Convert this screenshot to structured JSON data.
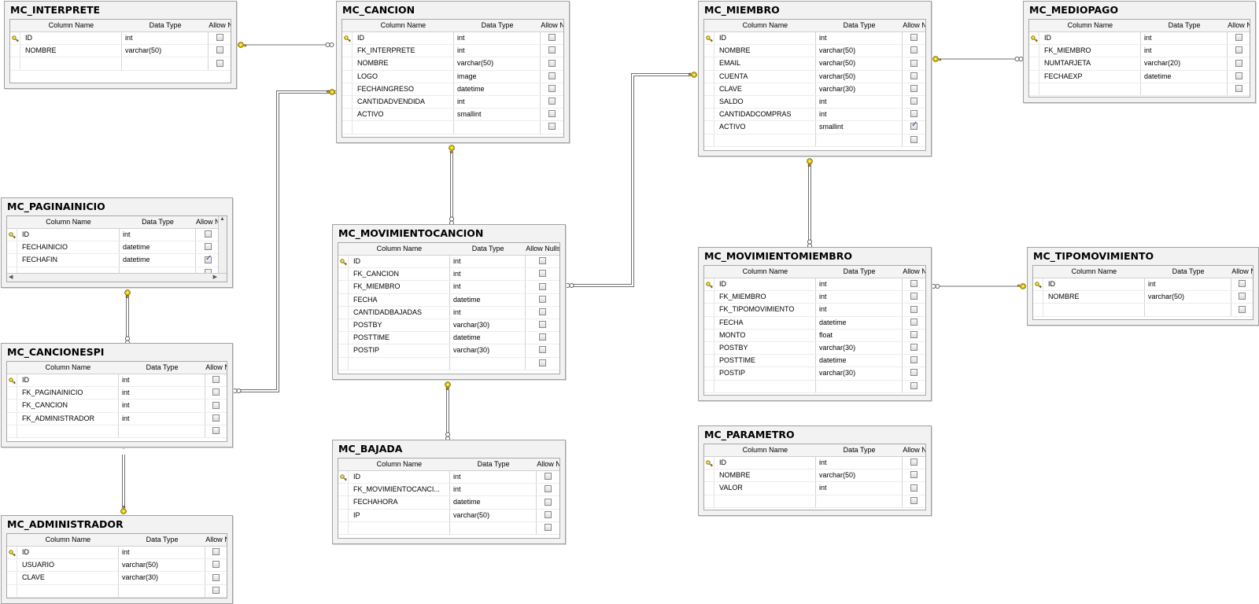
{
  "headers": {
    "column": "Column Name",
    "type": "Data Type",
    "nulls": "Allow Nulls"
  },
  "icons": {
    "primary_key": "key-icon",
    "connector_many": "infinity-end",
    "connector_one": "key-end"
  },
  "colors": {
    "key": "#e7c400",
    "line": "#707070",
    "table_bg": "#f2f2f2"
  },
  "tables": {
    "interprete": {
      "name": "MC_INTERPRETE",
      "rows": [
        {
          "key": true,
          "name": "ID",
          "type": "int",
          "null": false
        },
        {
          "key": false,
          "name": "NOMBRE",
          "type": "varchar(50)",
          "null": false
        },
        {
          "key": false,
          "name": "",
          "type": "",
          "null": false
        }
      ]
    },
    "cancion": {
      "name": "MC_CANCION",
      "rows": [
        {
          "key": true,
          "name": "ID",
          "type": "int",
          "null": false
        },
        {
          "key": false,
          "name": "FK_INTERPRETE",
          "type": "int",
          "null": false
        },
        {
          "key": false,
          "name": "NOMBRE",
          "type": "varchar(50)",
          "null": false
        },
        {
          "key": false,
          "name": "LOGO",
          "type": "image",
          "null": false
        },
        {
          "key": false,
          "name": "FECHAINGRESO",
          "type": "datetime",
          "null": false
        },
        {
          "key": false,
          "name": "CANTIDADVENDIDA",
          "type": "int",
          "null": false
        },
        {
          "key": false,
          "name": "ACTIVO",
          "type": "smallint",
          "null": false
        },
        {
          "key": false,
          "name": "",
          "type": "",
          "null": false
        }
      ]
    },
    "miembro": {
      "name": "MC_MIEMBRO",
      "rows": [
        {
          "key": true,
          "name": "ID",
          "type": "int",
          "null": false
        },
        {
          "key": false,
          "name": "NOMBRE",
          "type": "varchar(50)",
          "null": false
        },
        {
          "key": false,
          "name": "EMAIL",
          "type": "varchar(50)",
          "null": false
        },
        {
          "key": false,
          "name": "CUENTA",
          "type": "varchar(50)",
          "null": false
        },
        {
          "key": false,
          "name": "CLAVE",
          "type": "varchar(30)",
          "null": false
        },
        {
          "key": false,
          "name": "SALDO",
          "type": "int",
          "null": false
        },
        {
          "key": false,
          "name": "CANTIDADCOMPRAS",
          "type": "int",
          "null": false
        },
        {
          "key": false,
          "name": "ACTIVO",
          "type": "smallint",
          "null": true
        },
        {
          "key": false,
          "name": "",
          "type": "",
          "null": false
        }
      ]
    },
    "mediopago": {
      "name": "MC_MEDIOPAGO",
      "rows": [
        {
          "key": true,
          "name": "ID",
          "type": "int",
          "null": false
        },
        {
          "key": false,
          "name": "FK_MIEMBRO",
          "type": "int",
          "null": false
        },
        {
          "key": false,
          "name": "NUMTARJETA",
          "type": "varchar(20)",
          "null": false
        },
        {
          "key": false,
          "name": "FECHAEXP",
          "type": "datetime",
          "null": false
        },
        {
          "key": false,
          "name": "",
          "type": "",
          "null": false
        }
      ]
    },
    "paginainicio": {
      "name": "MC_PAGINAINICIO",
      "rows": [
        {
          "key": true,
          "name": "ID",
          "type": "int",
          "null": false
        },
        {
          "key": false,
          "name": "FECHAINICIO",
          "type": "datetime",
          "null": false
        },
        {
          "key": false,
          "name": "FECHAFIN",
          "type": "datetime",
          "null": true
        },
        {
          "key": false,
          "name": "",
          "type": "",
          "null": false
        }
      ]
    },
    "movimientocancion": {
      "name": "MC_MOVIMIENTOCANCION",
      "rows": [
        {
          "key": true,
          "name": "ID",
          "type": "int",
          "null": false
        },
        {
          "key": false,
          "name": "FK_CANCION",
          "type": "int",
          "null": false
        },
        {
          "key": false,
          "name": "FK_MIEMBRO",
          "type": "int",
          "null": false
        },
        {
          "key": false,
          "name": "FECHA",
          "type": "datetime",
          "null": false
        },
        {
          "key": false,
          "name": "CANTIDADBAJADAS",
          "type": "int",
          "null": false
        },
        {
          "key": false,
          "name": "POSTBY",
          "type": "varchar(30)",
          "null": false
        },
        {
          "key": false,
          "name": "POSTTIME",
          "type": "datetime",
          "null": false
        },
        {
          "key": false,
          "name": "POSTIP",
          "type": "varchar(30)",
          "null": false
        },
        {
          "key": false,
          "name": "",
          "type": "",
          "null": false
        }
      ]
    },
    "movimientomiembro": {
      "name": "MC_MOVIMIENTOMIEMBRO",
      "rows": [
        {
          "key": true,
          "name": "ID",
          "type": "int",
          "null": false
        },
        {
          "key": false,
          "name": "FK_MIEMBRO",
          "type": "int",
          "null": false
        },
        {
          "key": false,
          "name": "FK_TIPOMOVIMIENTO",
          "type": "int",
          "null": false
        },
        {
          "key": false,
          "name": "FECHA",
          "type": "datetime",
          "null": false
        },
        {
          "key": false,
          "name": "MONTO",
          "type": "float",
          "null": false
        },
        {
          "key": false,
          "name": "POSTBY",
          "type": "varchar(30)",
          "null": false
        },
        {
          "key": false,
          "name": "POSTTIME",
          "type": "datetime",
          "null": false
        },
        {
          "key": false,
          "name": "POSTIP",
          "type": "varchar(30)",
          "null": false
        },
        {
          "key": false,
          "name": "",
          "type": "",
          "null": false
        }
      ]
    },
    "tipomovimiento": {
      "name": "MC_TIPOMOVIMIENTO",
      "rows": [
        {
          "key": true,
          "name": "ID",
          "type": "int",
          "null": false
        },
        {
          "key": false,
          "name": "NOMBRE",
          "type": "varchar(50)",
          "null": false
        },
        {
          "key": false,
          "name": "",
          "type": "",
          "null": false
        }
      ]
    },
    "cancionespi": {
      "name": "MC_CANCIONESPI",
      "rows": [
        {
          "key": true,
          "name": "ID",
          "type": "int",
          "null": false
        },
        {
          "key": false,
          "name": "FK_PAGINAINICIO",
          "type": "int",
          "null": false
        },
        {
          "key": false,
          "name": "FK_CANCION",
          "type": "int",
          "null": false
        },
        {
          "key": false,
          "name": "FK_ADMINISTRADOR",
          "type": "int",
          "null": false
        },
        {
          "key": false,
          "name": "",
          "type": "",
          "null": false
        }
      ]
    },
    "bajada": {
      "name": "MC_BAJADA",
      "rows": [
        {
          "key": true,
          "name": "ID",
          "type": "int",
          "null": false
        },
        {
          "key": false,
          "name": "FK_MOVIMIENTOCANCI...",
          "type": "int",
          "null": false
        },
        {
          "key": false,
          "name": "FECHAHORA",
          "type": "datetime",
          "null": false
        },
        {
          "key": false,
          "name": "IP",
          "type": "varchar(50)",
          "null": false
        },
        {
          "key": false,
          "name": "",
          "type": "",
          "null": false
        }
      ]
    },
    "parametro": {
      "name": "MC_PARAMETRO",
      "rows": [
        {
          "key": true,
          "name": "ID",
          "type": "int",
          "null": false
        },
        {
          "key": false,
          "name": "NOMBRE",
          "type": "varchar(50)",
          "null": false
        },
        {
          "key": false,
          "name": "VALOR",
          "type": "int",
          "null": false
        },
        {
          "key": false,
          "name": "",
          "type": "",
          "null": false
        }
      ]
    },
    "administrador": {
      "name": "MC_ADMINISTRADOR",
      "rows": [
        {
          "key": true,
          "name": "ID",
          "type": "int",
          "null": false
        },
        {
          "key": false,
          "name": "USUARIO",
          "type": "varchar(50)",
          "null": false
        },
        {
          "key": false,
          "name": "CLAVE",
          "type": "varchar(30)",
          "null": false
        },
        {
          "key": false,
          "name": "",
          "type": "",
          "null": false
        }
      ]
    }
  }
}
